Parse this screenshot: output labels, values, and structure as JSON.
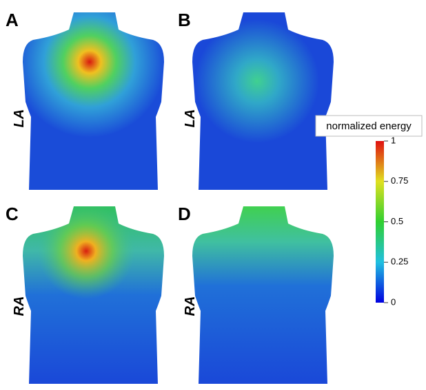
{
  "panels": [
    {
      "letter": "A",
      "side_label": "LA"
    },
    {
      "letter": "B",
      "side_label": "LA"
    },
    {
      "letter": "C",
      "side_label": "RA"
    },
    {
      "letter": "D",
      "side_label": "RA"
    }
  ],
  "colorbar": {
    "title": "normalized energy",
    "range": [
      0,
      1
    ],
    "ticks": [
      0,
      0.25,
      0.5,
      0.75,
      1
    ]
  }
}
